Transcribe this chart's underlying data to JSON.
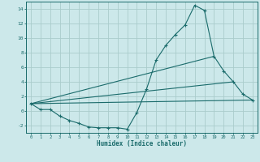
{
  "title": "",
  "xlabel": "Humidex (Indice chaleur)",
  "ylabel": "",
  "bg_color": "#cce8ea",
  "grid_color": "#aacccc",
  "line_color": "#1a6b6b",
  "xlim": [
    -0.5,
    23.5
  ],
  "ylim": [
    -3,
    15
  ],
  "xticks": [
    0,
    1,
    2,
    3,
    4,
    5,
    6,
    7,
    8,
    9,
    10,
    11,
    12,
    13,
    14,
    15,
    16,
    17,
    18,
    19,
    20,
    21,
    22,
    23
  ],
  "yticks": [
    -2,
    0,
    2,
    4,
    6,
    8,
    10,
    12,
    14
  ],
  "series1_x": [
    0,
    1,
    2,
    3,
    4,
    5,
    6,
    7,
    8,
    9,
    10,
    11,
    12,
    13,
    14,
    15,
    16,
    17,
    18,
    19,
    20,
    21,
    22,
    23
  ],
  "series1_y": [
    1.0,
    0.2,
    0.2,
    -0.7,
    -1.3,
    -1.7,
    -2.2,
    -2.3,
    -2.3,
    -2.3,
    -2.5,
    -0.2,
    3.0,
    7.0,
    9.0,
    10.5,
    11.8,
    14.5,
    13.8,
    7.5,
    5.5,
    4.0,
    2.3,
    1.5
  ],
  "series2_x": [
    0,
    23
  ],
  "series2_y": [
    1.0,
    1.5
  ],
  "series3_x": [
    0,
    19
  ],
  "series3_y": [
    1.0,
    7.5
  ],
  "series4_x": [
    0,
    21
  ],
  "series4_y": [
    1.0,
    4.0
  ]
}
